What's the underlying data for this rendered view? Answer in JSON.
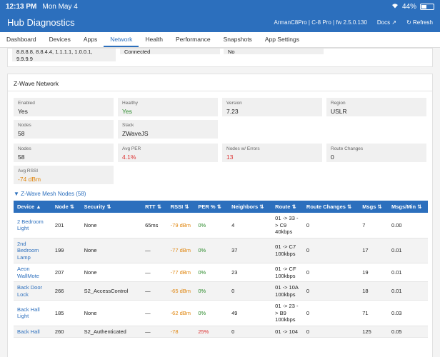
{
  "status": {
    "time": "12:13 PM",
    "date": "Mon May 4",
    "battery": "44%",
    "battery_level": 0.44
  },
  "app": {
    "title": "Hub Diagnostics",
    "hub_info": "ArmanC8Pro | C-8 Pro | fw 2.5.0.130",
    "docs": "Docs ↗",
    "refresh": "↻ Refresh"
  },
  "tabs": [
    "Dashboard",
    "Devices",
    "Apps",
    "Network",
    "Health",
    "Performance",
    "Snapshots",
    "App Settings"
  ],
  "active_tab": "Network",
  "prev_section": {
    "dns_line1": "8.8.8.8, 8.8.4.4, 1.1.1.1, 1.0.0.1,",
    "dns_line2": "9.9.9.9",
    "connected": "Connected",
    "no": "No"
  },
  "zwave": {
    "title": "Z-Wave Network",
    "enabled_label": "Enabled",
    "enabled": "Yes",
    "healthy_label": "Healthy",
    "healthy": "Yes",
    "version_label": "Version",
    "version": "7.23",
    "region_label": "Region",
    "region": "USLR",
    "nodes_label": "Nodes",
    "nodes": "58",
    "stack_label": "Stack",
    "stack": "ZWaveJS",
    "nodes2_label": "Nodes",
    "nodes2": "58",
    "avg_per_label": "Avg PER",
    "avg_per": "4.1%",
    "nodes_errors_label": "Nodes w/ Errors",
    "nodes_errors": "13",
    "route_changes_label": "Route Changes",
    "route_changes": "0",
    "avg_rssi_label": "Avg RSSI",
    "avg_rssi": "-74 dBm"
  },
  "mesh": {
    "title": "▼ Z-Wave Mesh Nodes (58)",
    "headers": [
      "Device ▲",
      "Node ⇅",
      "Security ⇅",
      "RTT ⇅",
      "RSSI ⇅",
      "PER % ⇅",
      "Neighbors ⇅",
      "Route ⇅",
      "Route Changes ⇅",
      "Msgs ⇅",
      "Msgs/Min ⇅"
    ],
    "rows": [
      {
        "device": "2 Bedroom Light",
        "node": "201",
        "security": "None",
        "rtt": "65ms",
        "rssi": "-79 dBm",
        "per": "0%",
        "neighbors": "4",
        "route": "01 -> 33 -> C9 40kbps",
        "route_changes": "0",
        "msgs": "7",
        "msgs_min": "0.00"
      },
      {
        "device": "2nd Bedroom Lamp",
        "node": "199",
        "security": "None",
        "rtt": "—",
        "rssi": "-77 dBm",
        "per": "0%",
        "neighbors": "37",
        "route": "01 -> C7 100kbps",
        "route_changes": "0",
        "msgs": "17",
        "msgs_min": "0.01"
      },
      {
        "device": "Aeon WallMote",
        "node": "207",
        "security": "None",
        "rtt": "—",
        "rssi": "-77 dBm",
        "per": "0%",
        "neighbors": "23",
        "route": "01 -> CF 100kbps",
        "route_changes": "0",
        "msgs": "19",
        "msgs_min": "0.01"
      },
      {
        "device": "Back Door Lock",
        "node": "266",
        "security": "S2_AccessControl",
        "rtt": "—",
        "rssi": "-65 dBm",
        "per": "0%",
        "neighbors": "0",
        "route": "01 -> 10A 100kbps",
        "route_changes": "0",
        "msgs": "18",
        "msgs_min": "0.01"
      },
      {
        "device": "Back Hall Light",
        "node": "185",
        "security": "None",
        "rtt": "—",
        "rssi": "-62 dBm",
        "per": "0%",
        "neighbors": "49",
        "route": "01 -> 23 -> B9 100kbps",
        "route_changes": "0",
        "msgs": "71",
        "msgs_min": "0.03"
      },
      {
        "device": "Back Hall",
        "node": "260",
        "security": "S2_Authenticated",
        "rtt": "—",
        "rssi": "-78",
        "per": "25%",
        "neighbors": "0",
        "route": "01 -> 104",
        "route_changes": "0",
        "msgs": "125",
        "msgs_min": "0.05"
      }
    ]
  },
  "colors": {
    "primary": "#2c6fbd",
    "good": "#2a8a2a",
    "bad": "#dd3333",
    "warn": "#e0860f"
  }
}
